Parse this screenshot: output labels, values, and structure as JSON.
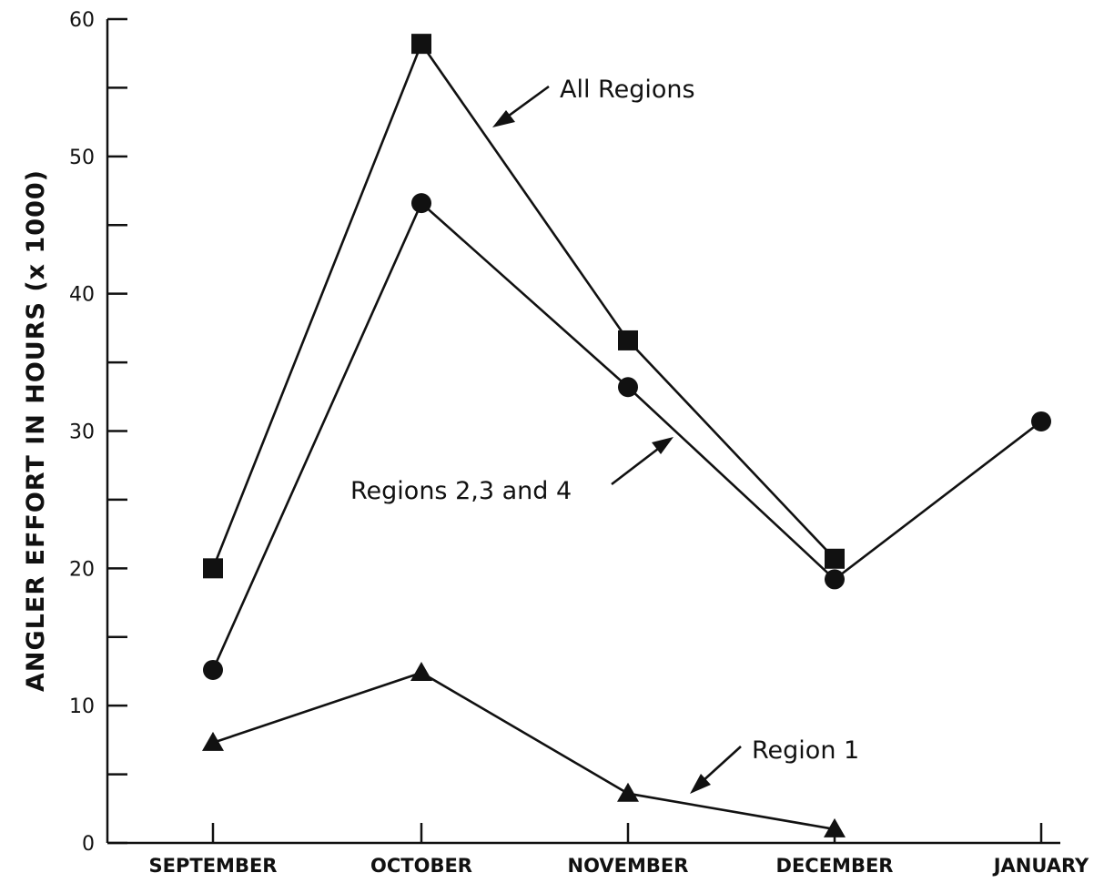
{
  "chart_data": {
    "type": "line",
    "title": "",
    "xlabel": "",
    "ylabel": "ANGLER EFFORT IN HOURS (x 1000)",
    "categories": [
      "SEPTEMBER",
      "OCTOBER",
      "NOVEMBER",
      "DECEMBER",
      "JANUARY"
    ],
    "ylim": [
      0,
      60
    ],
    "yticks": [
      0,
      10,
      20,
      30,
      40,
      50,
      60
    ],
    "grid": false,
    "series": [
      {
        "name": "All Regions",
        "marker": "square",
        "values": [
          20.0,
          58.2,
          36.6,
          20.7,
          null
        ]
      },
      {
        "name": "Regions 2,3 and 4",
        "marker": "circle",
        "values": [
          12.6,
          46.6,
          33.2,
          19.2,
          30.7
        ]
      },
      {
        "name": "Region 1",
        "marker": "triangle",
        "values": [
          7.3,
          12.4,
          3.6,
          1.0,
          null
        ]
      }
    ],
    "annotations": [
      "All Regions",
      "Regions 2,3 and 4",
      "Region 1"
    ]
  }
}
